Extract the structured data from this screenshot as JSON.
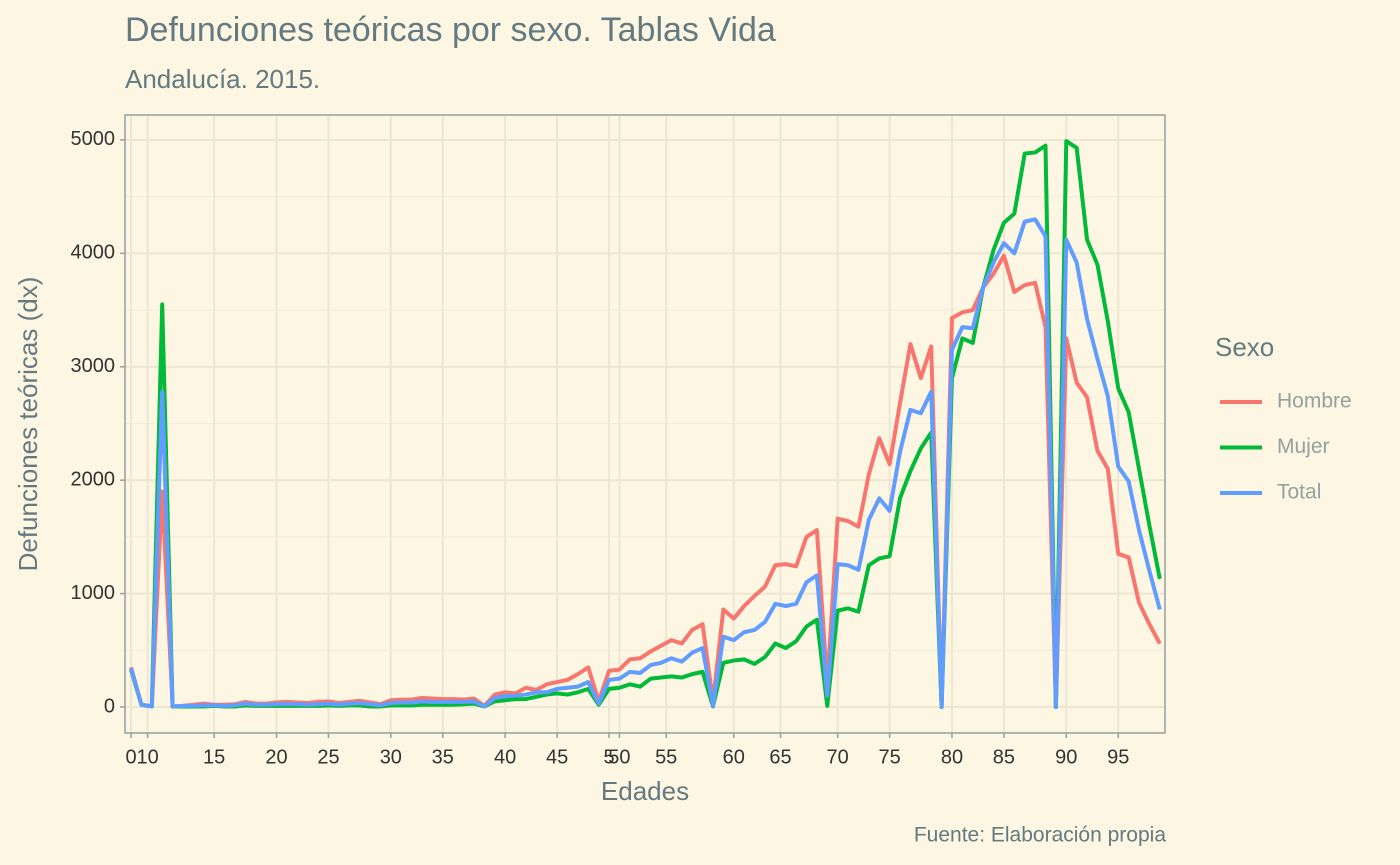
{
  "chart_data": {
    "type": "line",
    "title": "Defunciones teóricas por sexo. Tablas Vida",
    "subtitle": "Andalucía. 2015.",
    "x_label": "Edades",
    "y_label": "Defunciones teóricas (dx)",
    "caption": "Fuente: Elaboración propia",
    "legend_title": "Sexo",
    "legend_position": "right",
    "grid": true,
    "xlim": [
      -0.58,
      99.5
    ],
    "ylim": [
      -229,
      5220
    ],
    "xticks": [
      {
        "value": 0,
        "label": "0"
      },
      {
        "value": 1.6,
        "label": "10"
      },
      {
        "value": 8,
        "label": "15"
      },
      {
        "value": 14,
        "label": "20"
      },
      {
        "value": 19,
        "label": "25"
      },
      {
        "value": 25,
        "label": "30"
      },
      {
        "value": 30,
        "label": "35"
      },
      {
        "value": 36,
        "label": "40"
      },
      {
        "value": 41,
        "label": "45"
      },
      {
        "value": 46,
        "label": "5"
      },
      {
        "value": 47,
        "label": "50"
      },
      {
        "value": 51.5,
        "label": "55"
      },
      {
        "value": 58,
        "label": "60"
      },
      {
        "value": 62.5,
        "label": "65"
      },
      {
        "value": 68,
        "label": "70"
      },
      {
        "value": 73,
        "label": "75"
      },
      {
        "value": 79,
        "label": "80"
      },
      {
        "value": 84,
        "label": "85"
      },
      {
        "value": 90,
        "label": "90"
      },
      {
        "value": 95,
        "label": "95"
      }
    ],
    "yticks": [
      0,
      1000,
      2000,
      3000,
      4000,
      5000
    ],
    "series": [
      {
        "name": "Hombre",
        "color": "#F8766D",
        "values": [
          350,
          20,
          5,
          1900,
          5,
          10,
          20,
          30,
          20,
          20,
          25,
          45,
          30,
          30,
          40,
          45,
          40,
          35,
          45,
          50,
          35,
          45,
          55,
          40,
          25,
          60,
          65,
          65,
          80,
          75,
          70,
          70,
          65,
          75,
          10,
          110,
          130,
          120,
          170,
          150,
          200,
          220,
          240,
          290,
          350,
          50,
          320,
          330,
          420,
          430,
          490,
          540,
          590,
          560,
          680,
          730,
          50,
          860,
          780,
          890,
          980,
          1060,
          1250,
          1260,
          1240,
          1500,
          1560,
          200,
          1660,
          1640,
          1590,
          2050,
          2370,
          2140,
          2680,
          3200,
          2900,
          3180,
          0,
          3430,
          3480,
          3500,
          3700,
          3820,
          3980,
          3660,
          3720,
          3740,
          3350,
          0,
          3250,
          2860,
          2730,
          2260,
          2100,
          1350,
          1320,
          920,
          730,
          560
        ]
      },
      {
        "name": "Mujer",
        "color": "#00BA38",
        "values": [
          330,
          20,
          5,
          3550,
          5,
          5,
          5,
          5,
          10,
          5,
          5,
          15,
          10,
          10,
          10,
          10,
          10,
          10,
          10,
          15,
          10,
          15,
          15,
          5,
          5,
          15,
          15,
          15,
          20,
          20,
          20,
          20,
          25,
          30,
          5,
          50,
          60,
          70,
          70,
          90,
          110,
          120,
          110,
          130,
          160,
          20,
          160,
          170,
          200,
          180,
          250,
          260,
          270,
          260,
          290,
          310,
          5,
          390,
          410,
          420,
          380,
          440,
          560,
          520,
          580,
          710,
          770,
          10,
          850,
          870,
          840,
          1250,
          1310,
          1330,
          1840,
          2080,
          2280,
          2420,
          0,
          2900,
          3250,
          3210,
          3700,
          4030,
          4270,
          4350,
          4880,
          4890,
          4950,
          0,
          4990,
          4930,
          4120,
          3900,
          3400,
          2810,
          2600,
          2100,
          1600,
          1130
        ]
      },
      {
        "name": "Total",
        "color": "#619CFF",
        "values": [
          340,
          20,
          5,
          2780,
          5,
          10,
          10,
          15,
          15,
          10,
          15,
          30,
          20,
          20,
          25,
          25,
          25,
          20,
          25,
          30,
          20,
          30,
          35,
          25,
          15,
          35,
          40,
          40,
          50,
          45,
          45,
          45,
          45,
          50,
          5,
          80,
          95,
          100,
          110,
          130,
          130,
          160,
          170,
          180,
          220,
          30,
          240,
          250,
          310,
          300,
          370,
          390,
          430,
          400,
          480,
          520,
          10,
          620,
          590,
          660,
          680,
          750,
          910,
          890,
          910,
          1100,
          1160,
          100,
          1260,
          1250,
          1210,
          1650,
          1840,
          1730,
          2250,
          2620,
          2590,
          2780,
          0,
          3150,
          3350,
          3340,
          3700,
          3920,
          4090,
          4000,
          4280,
          4300,
          4150,
          0,
          4120,
          3920,
          3420,
          3070,
          2740,
          2120,
          1990,
          1560,
          1200,
          860
        ]
      }
    ]
  }
}
